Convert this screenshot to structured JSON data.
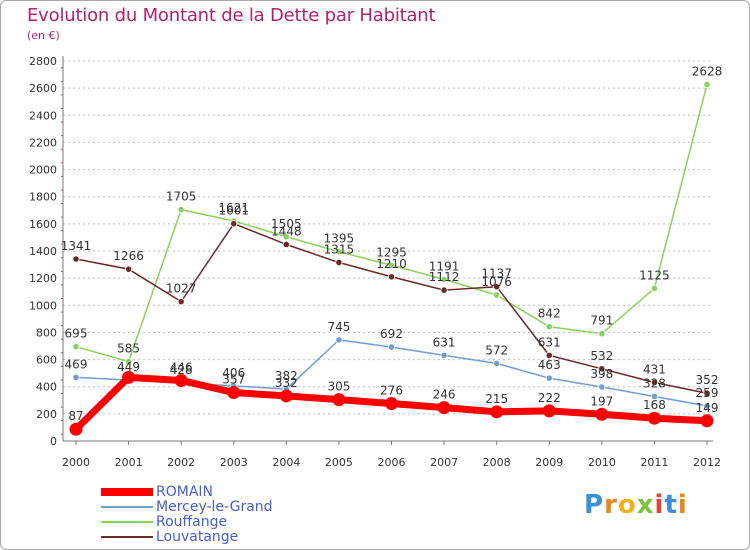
{
  "header": {
    "title": "Evolution du Montant de la Dette par Habitant",
    "subtitle": "(en €)"
  },
  "logo": {
    "letters": [
      "P",
      "r",
      "o",
      "x",
      "i",
      "t",
      "i"
    ],
    "colors": [
      "#3a8fd9",
      "#e08a1e",
      "#f0b21c",
      "#7cc242",
      "#d84b3c",
      "#3a8fd9",
      "#e08a1e"
    ]
  },
  "chart_data": {
    "type": "line",
    "x": [
      2000,
      2001,
      2002,
      2003,
      2004,
      2005,
      2006,
      2007,
      2008,
      2009,
      2010,
      2011,
      2012
    ],
    "ylim": [
      0,
      2800
    ],
    "yticks": [
      0,
      200,
      400,
      600,
      800,
      1000,
      1200,
      1400,
      1600,
      1800,
      2000,
      2200,
      2400,
      2600,
      2800
    ],
    "grid": "horizontal dashed",
    "legend_position": "bottom-left",
    "series": [
      {
        "name": "ROMAIN",
        "color": "#ff0000",
        "values": [
          87,
          469,
          446,
          357,
          332,
          305,
          276,
          246,
          215,
          222,
          197,
          168,
          149
        ]
      },
      {
        "name": "Mercey-le-Grand",
        "color": "#6f9fd1",
        "values": [
          469,
          449,
          428,
          406,
          382,
          745,
          692,
          631,
          572,
          463,
          398,
          328,
          259
        ]
      },
      {
        "name": "Rouffange",
        "color": "#8dd05f",
        "values": [
          695,
          585,
          1705,
          1621,
          1505,
          1395,
          1295,
          1191,
          1076,
          842,
          791,
          1125,
          2628
        ]
      },
      {
        "name": "Louvatange",
        "color": "#6b2a2a",
        "values": [
          1341,
          1266,
          1027,
          1601,
          1448,
          1315,
          1210,
          1112,
          1137,
          631,
          532,
          431,
          352
        ]
      }
    ],
    "labels": [
      {
        "series": 0,
        "texts": [
          "87",
          "",
          "446",
          "357",
          "332",
          "305",
          "276",
          "246",
          "215",
          "222",
          "197",
          "168",
          "149"
        ]
      },
      {
        "series": 1,
        "texts": [
          "469",
          "449",
          "428",
          "406",
          "382",
          "745",
          "692",
          "631",
          "572",
          "463",
          "398",
          "328",
          "259"
        ]
      },
      {
        "series": 2,
        "texts": [
          "695",
          "585",
          "1705",
          "1621",
          "1505",
          "1395",
          "1295",
          "1191",
          "1076",
          "842",
          "791",
          "1125",
          "2628"
        ]
      },
      {
        "series": 3,
        "texts": [
          "1341",
          "1266",
          "1027",
          "1601",
          "1448",
          "1315",
          "1210",
          "1112",
          "1137",
          "631",
          "532",
          "431",
          "352"
        ]
      }
    ]
  }
}
